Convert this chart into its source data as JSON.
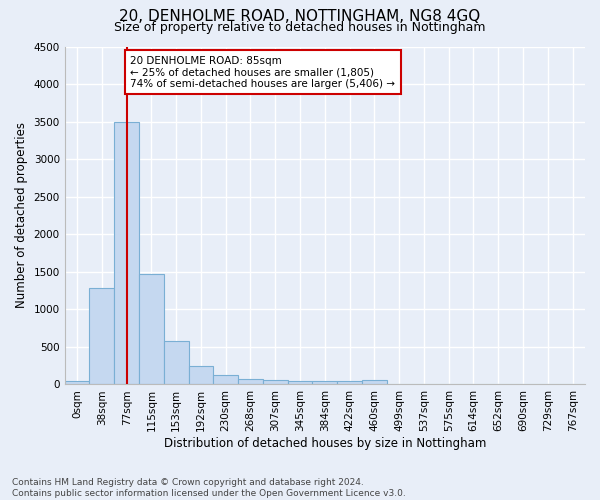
{
  "title": "20, DENHOLME ROAD, NOTTINGHAM, NG8 4GQ",
  "subtitle": "Size of property relative to detached houses in Nottingham",
  "xlabel": "Distribution of detached houses by size in Nottingham",
  "ylabel": "Number of detached properties",
  "bar_labels": [
    "0sqm",
    "38sqm",
    "77sqm",
    "115sqm",
    "153sqm",
    "192sqm",
    "230sqm",
    "268sqm",
    "307sqm",
    "345sqm",
    "384sqm",
    "422sqm",
    "460sqm",
    "499sqm",
    "537sqm",
    "575sqm",
    "614sqm",
    "652sqm",
    "690sqm",
    "729sqm",
    "767sqm"
  ],
  "bar_values": [
    40,
    1280,
    3500,
    1470,
    580,
    250,
    120,
    75,
    55,
    45,
    45,
    45,
    55,
    0,
    0,
    0,
    0,
    0,
    0,
    0,
    0
  ],
  "bar_color": "#c5d8f0",
  "bar_edgecolor": "#7aafd4",
  "vline_x": 2.0,
  "vline_color": "#cc0000",
  "annotation_text": "20 DENHOLME ROAD: 85sqm\n← 25% of detached houses are smaller (1,805)\n74% of semi-detached houses are larger (5,406) →",
  "annotation_box_color": "#cc0000",
  "annotation_facecolor": "white",
  "ylim": [
    0,
    4500
  ],
  "yticks": [
    0,
    500,
    1000,
    1500,
    2000,
    2500,
    3000,
    3500,
    4000,
    4500
  ],
  "footer_text": "Contains HM Land Registry data © Crown copyright and database right 2024.\nContains public sector information licensed under the Open Government Licence v3.0.",
  "bg_color": "#e8eef8",
  "grid_color": "#ffffff",
  "title_fontsize": 11,
  "subtitle_fontsize": 9,
  "xlabel_fontsize": 8.5,
  "ylabel_fontsize": 8.5,
  "footer_fontsize": 6.5,
  "tick_fontsize": 7.5,
  "annotation_fontsize": 7.5
}
